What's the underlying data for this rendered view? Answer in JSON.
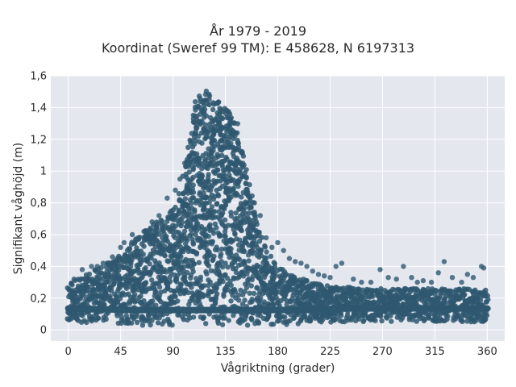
{
  "header": {
    "title_line1": "År 1979 - 2019",
    "title_line2": "Koordinat (Sweref 99 TM): E 458628, N 6197313"
  },
  "chart_data": {
    "type": "scatter",
    "title": "År 1979 - 2019 Koordinat (Sweref 99 TM): E 458628, N 6197313",
    "xlabel": "Vågriktning (grader)",
    "ylabel": "Signifikant våghöjd (m)",
    "xlim": [
      -15,
      375
    ],
    "ylim": [
      -0.07,
      1.6
    ],
    "xticks": [
      0,
      45,
      90,
      135,
      180,
      225,
      270,
      315,
      360
    ],
    "xtick_labels": [
      "0",
      "45",
      "90",
      "135",
      "180",
      "225",
      "270",
      "315",
      "360"
    ],
    "yticks": [
      0,
      0.2,
      0.4,
      0.6,
      0.8,
      1.0,
      1.2,
      1.4,
      1.6
    ],
    "ytick_labels": [
      "0",
      "0,2",
      "0,4",
      "0,6",
      "0,8",
      "1",
      "1,2",
      "1,4",
      "1,6"
    ],
    "grid": true,
    "point_color": "#2f5870",
    "background_color": "#e5e7ef",
    "series": [
      {
        "envelope_upper": {
          "x": [
            0,
            10,
            20,
            30,
            40,
            50,
            60,
            70,
            80,
            90,
            95,
            100,
            105,
            110,
            115,
            120,
            125,
            130,
            135,
            140,
            145,
            150,
            155,
            160,
            165,
            170,
            175,
            180,
            190,
            200,
            210,
            220,
            240,
            260,
            280,
            300,
            320,
            340,
            360
          ],
          "y": [
            0.3,
            0.33,
            0.37,
            0.41,
            0.46,
            0.52,
            0.59,
            0.65,
            0.7,
            0.76,
            0.85,
            1.0,
            1.25,
            1.45,
            1.52,
            1.5,
            1.46,
            1.44,
            1.42,
            1.38,
            1.3,
            1.12,
            0.95,
            0.75,
            0.62,
            0.52,
            0.45,
            0.4,
            0.36,
            0.33,
            0.3,
            0.28,
            0.27,
            0.26,
            0.26,
            0.26,
            0.26,
            0.26,
            0.25
          ]
        },
        "envelope_lower": {
          "x": [
            0,
            60,
            120,
            180,
            240,
            300,
            360
          ],
          "y": [
            0.05,
            0.03,
            0.03,
            0.03,
            0.05,
            0.05,
            0.05
          ]
        },
        "outliers": {
          "x": [
            5,
            12,
            20,
            25,
            30,
            38,
            45,
            48,
            55,
            60,
            65,
            72,
            78,
            85,
            92,
            96,
            100,
            150,
            160,
            165,
            170,
            175,
            180,
            185,
            190,
            195,
            200,
            205,
            210,
            215,
            220,
            225,
            230,
            235,
            245,
            252,
            260,
            268,
            275,
            282,
            288,
            295,
            300,
            305,
            312,
            318,
            323,
            330,
            338,
            343,
            348,
            355,
            357
          ],
          "y": [
            0.32,
            0.38,
            0.4,
            0.4,
            0.42,
            0.46,
            0.52,
            0.55,
            0.6,
            0.58,
            0.62,
            0.68,
            0.72,
            0.83,
            0.88,
            0.95,
            1.05,
            1.05,
            0.8,
            0.72,
            0.58,
            0.52,
            0.55,
            0.5,
            0.45,
            0.43,
            0.42,
            0.4,
            0.37,
            0.35,
            0.34,
            0.33,
            0.4,
            0.42,
            0.32,
            0.3,
            0.3,
            0.38,
            0.33,
            0.32,
            0.4,
            0.33,
            0.3,
            0.31,
            0.3,
            0.36,
            0.43,
            0.33,
            0.3,
            0.35,
            0.33,
            0.4,
            0.39
          ]
        }
      }
    ]
  }
}
